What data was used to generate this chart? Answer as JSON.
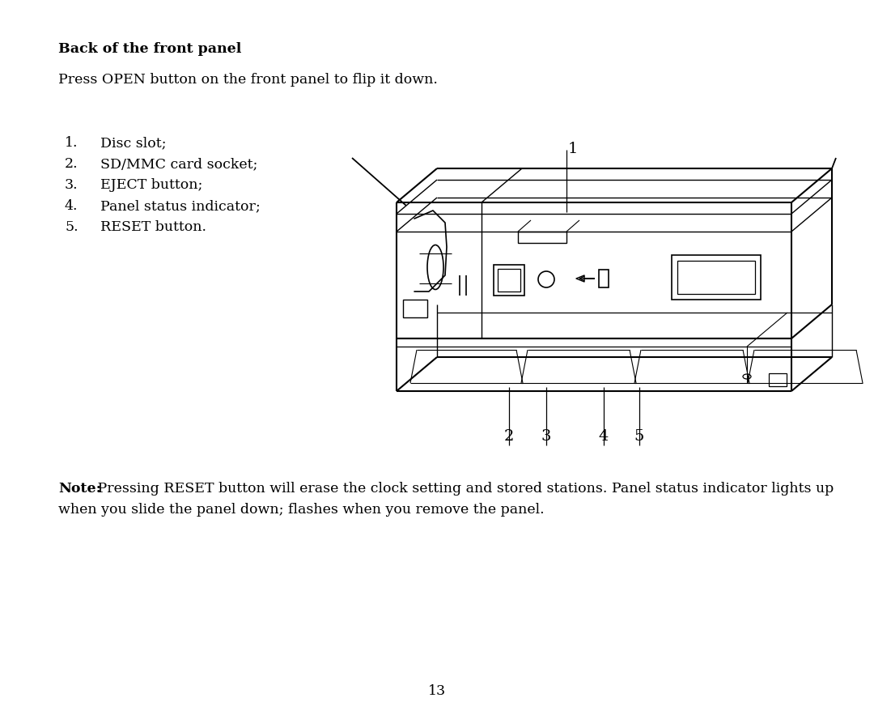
{
  "title": "Back of the front panel",
  "subtitle": "Press OPEN button on the front panel to flip it down.",
  "list_items_num": [
    "1.",
    "2.",
    "3.",
    "4.",
    "5."
  ],
  "list_items_text": [
    "Disc slot;",
    "SD/MMC card socket;",
    "EJECT button;",
    "Panel status indicator;",
    "RESET button."
  ],
  "note_bold": "Note:",
  "note_line1": " Pressing RESET button will erase the clock setting and stored stations. Panel status indicator lights up",
  "note_line2": "when you slide the panel down; flashes when you remove the panel.",
  "page_number": "13",
  "bg_color": "#ffffff",
  "text_color": "#000000",
  "line_color": "#000000",
  "font_size": 12.5
}
